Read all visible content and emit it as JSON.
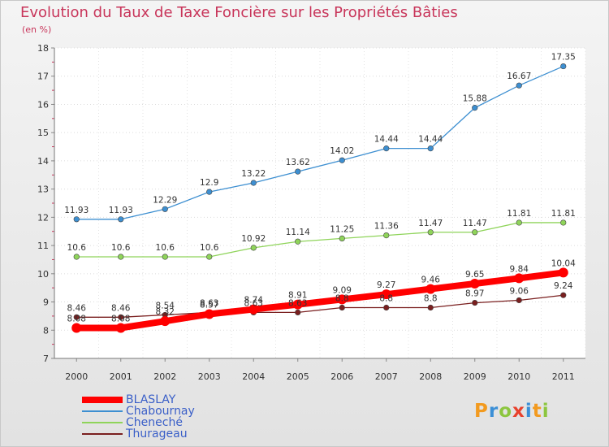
{
  "title": "Evolution du Taux de Taxe Foncière sur les Propriétés Bâties",
  "unit_label": "(en %)",
  "logo_text": "Proxiti",
  "chart_data": {
    "type": "line",
    "title": "Evolution du Taux de Taxe Foncière sur les Propriétés Bâties",
    "ylabel": "(en %)",
    "xlabel": "",
    "x": [
      "2000",
      "2001",
      "2002",
      "2003",
      "2004",
      "2005",
      "2006",
      "2007",
      "2008",
      "2009",
      "2010",
      "2011"
    ],
    "ylim": [
      7,
      18
    ],
    "yticks": [
      "7",
      "8",
      "9",
      "10",
      "11",
      "12",
      "13",
      "14",
      "15",
      "16",
      "17",
      "18"
    ],
    "grid": true,
    "legend_position": "bottom-left",
    "series": [
      {
        "name": "BLASLAY",
        "color": "#ff0000",
        "values": [
          8.08,
          8.08,
          8.32,
          8.57,
          8.74,
          8.91,
          9.09,
          9.27,
          9.46,
          9.65,
          9.84,
          10.04
        ],
        "labels": [
          "8.08",
          "8.08",
          "8.32",
          "8.57",
          "8.74",
          "8.91",
          "9.09",
          "9.27",
          "9.46",
          "9.65",
          "9.84",
          "10.04"
        ]
      },
      {
        "name": "Chabournay",
        "color": "#3d8fd1",
        "values": [
          11.93,
          11.93,
          12.29,
          12.9,
          13.22,
          13.62,
          14.02,
          14.44,
          14.44,
          15.88,
          16.67,
          17.35
        ],
        "labels": [
          "11.93",
          "11.93",
          "12.29",
          "12.9",
          "13.22",
          "13.62",
          "14.02",
          "14.44",
          "14.44",
          "15.88",
          "16.67",
          "17.35"
        ]
      },
      {
        "name": "Cheneché",
        "color": "#8fd45a",
        "values": [
          10.6,
          10.6,
          10.6,
          10.6,
          10.92,
          11.14,
          11.25,
          11.36,
          11.47,
          11.47,
          11.81,
          11.81
        ],
        "labels": [
          "10.6",
          "10.6",
          "10.6",
          "10.6",
          "10.92",
          "11.14",
          "11.25",
          "11.36",
          "11.47",
          "11.47",
          "11.81",
          "11.81"
        ]
      },
      {
        "name": "Thurageau",
        "color": "#7a1f1f",
        "values": [
          8.46,
          8.46,
          8.54,
          8.63,
          8.63,
          8.63,
          8.8,
          8.8,
          8.8,
          8.97,
          9.06,
          9.24
        ],
        "labels": [
          "8.46",
          "8.46",
          "8.54",
          "8.63",
          "8.63",
          "8.63",
          "8.8",
          "8.8",
          "8.8",
          "8.97",
          "9.06",
          "9.24"
        ]
      }
    ]
  }
}
